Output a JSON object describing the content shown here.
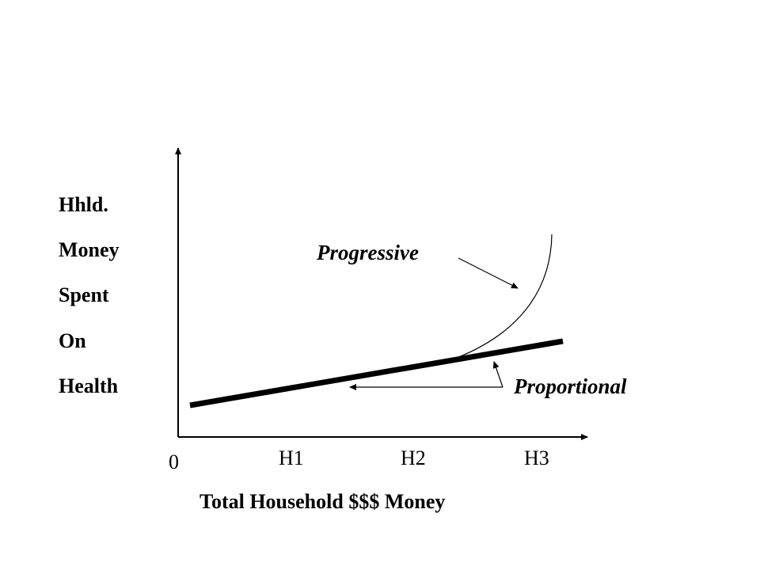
{
  "y_axis_label_lines": [
    "Hhld.",
    "Money",
    "Spent",
    "On",
    "Health"
  ],
  "x_axis_label": "Total Household $$$ Money",
  "origin_label": "0",
  "x_ticks": [
    "H1",
    "H2",
    "H3"
  ],
  "annotations": {
    "progressive": "Progressive",
    "proportional": "Proportional"
  },
  "colors": {
    "background": "#ffffff",
    "ink": "#000000"
  }
}
